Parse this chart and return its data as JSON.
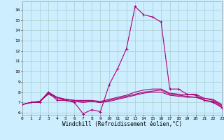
{
  "xlabel": "Windchill (Refroidissement éolien,°C)",
  "xlim": [
    0,
    23
  ],
  "ylim": [
    5.8,
    16.8
  ],
  "yticks": [
    6,
    7,
    8,
    9,
    10,
    11,
    12,
    13,
    14,
    15,
    16
  ],
  "xticks": [
    0,
    1,
    2,
    3,
    4,
    5,
    6,
    7,
    8,
    9,
    10,
    11,
    12,
    13,
    14,
    15,
    16,
    17,
    18,
    19,
    20,
    21,
    22,
    23
  ],
  "bg_color": "#cceeff",
  "grid_color": "#aacccc",
  "line_color": "#aa0077",
  "lines": [
    {
      "x": [
        0,
        1,
        2,
        3,
        4,
        5,
        6,
        7,
        8,
        9,
        10,
        11,
        12,
        13,
        14,
        15,
        16,
        17,
        18,
        19,
        20,
        21,
        22,
        23
      ],
      "y": [
        6.8,
        7.0,
        7.0,
        8.0,
        7.2,
        7.2,
        7.0,
        5.9,
        6.3,
        6.1,
        8.7,
        10.3,
        12.2,
        16.3,
        15.5,
        15.3,
        14.8,
        8.3,
        8.3,
        7.8,
        7.7,
        7.2,
        7.0,
        6.5
      ],
      "marker": true
    },
    {
      "x": [
        0,
        1,
        2,
        3,
        4,
        5,
        6,
        7,
        8,
        9,
        10,
        11,
        12,
        13,
        14,
        15,
        16,
        17,
        18,
        19,
        20,
        21,
        22,
        23
      ],
      "y": [
        6.8,
        7.0,
        7.1,
        7.9,
        7.5,
        7.3,
        7.2,
        7.1,
        7.1,
        7.0,
        7.2,
        7.4,
        7.6,
        7.8,
        8.0,
        8.1,
        8.2,
        7.8,
        7.7,
        7.6,
        7.5,
        7.4,
        7.2,
        6.7
      ],
      "marker": false
    },
    {
      "x": [
        0,
        1,
        2,
        3,
        4,
        5,
        6,
        7,
        8,
        9,
        10,
        11,
        12,
        13,
        14,
        15,
        16,
        17,
        18,
        19,
        20,
        21,
        22,
        23
      ],
      "y": [
        6.8,
        7.0,
        7.1,
        8.0,
        7.5,
        7.3,
        7.2,
        7.2,
        7.2,
        7.1,
        7.3,
        7.5,
        7.7,
        8.0,
        8.2,
        8.3,
        8.3,
        7.9,
        7.8,
        7.8,
        7.8,
        7.4,
        7.3,
        6.8
      ],
      "marker": false
    },
    {
      "x": [
        0,
        1,
        2,
        3,
        4,
        5,
        6,
        7,
        8,
        9,
        10,
        11,
        12,
        13,
        14,
        15,
        16,
        17,
        18,
        19,
        20,
        21,
        22,
        23
      ],
      "y": [
        6.8,
        7.0,
        7.1,
        7.8,
        7.4,
        7.2,
        7.1,
        7.0,
        7.1,
        7.0,
        7.1,
        7.3,
        7.5,
        7.7,
        7.9,
        8.0,
        8.0,
        7.7,
        7.6,
        7.5,
        7.5,
        7.2,
        7.1,
        6.6
      ],
      "marker": false
    }
  ],
  "markersize": 3,
  "linewidth": 0.8,
  "tick_fontsize": 4.5,
  "label_fontsize": 5.5
}
